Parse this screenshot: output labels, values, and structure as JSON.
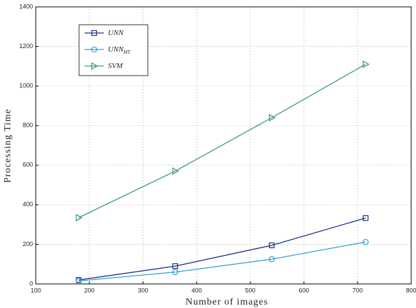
{
  "chart_data": {
    "type": "line",
    "x_label": "Number of images",
    "y_label": "Processing Time",
    "xlim": [
      100,
      800
    ],
    "xticks": [
      100,
      200,
      300,
      400,
      500,
      600,
      700,
      800
    ],
    "ylim": [
      0,
      1400
    ],
    "yticks": [
      0,
      200,
      400,
      600,
      800,
      1000,
      1200,
      1400
    ],
    "grid": true,
    "legend": "upper left",
    "series": [
      {
        "name": "UNN",
        "color": "#1c2a8c",
        "marker": "square",
        "x": [
          180,
          360,
          540,
          715
        ],
        "values": [
          20,
          90,
          195,
          333
        ]
      },
      {
        "name": "UNN",
        "subscript": "MT",
        "color": "#2e9fd8",
        "marker": "circle",
        "x": [
          180,
          360,
          540,
          715
        ],
        "values": [
          15,
          60,
          125,
          212
        ]
      },
      {
        "name": "SVM",
        "color": "#3a9a78",
        "marker": "triangle-right",
        "x": [
          180,
          360,
          540,
          715
        ],
        "values": [
          335,
          570,
          840,
          1110
        ]
      }
    ]
  }
}
